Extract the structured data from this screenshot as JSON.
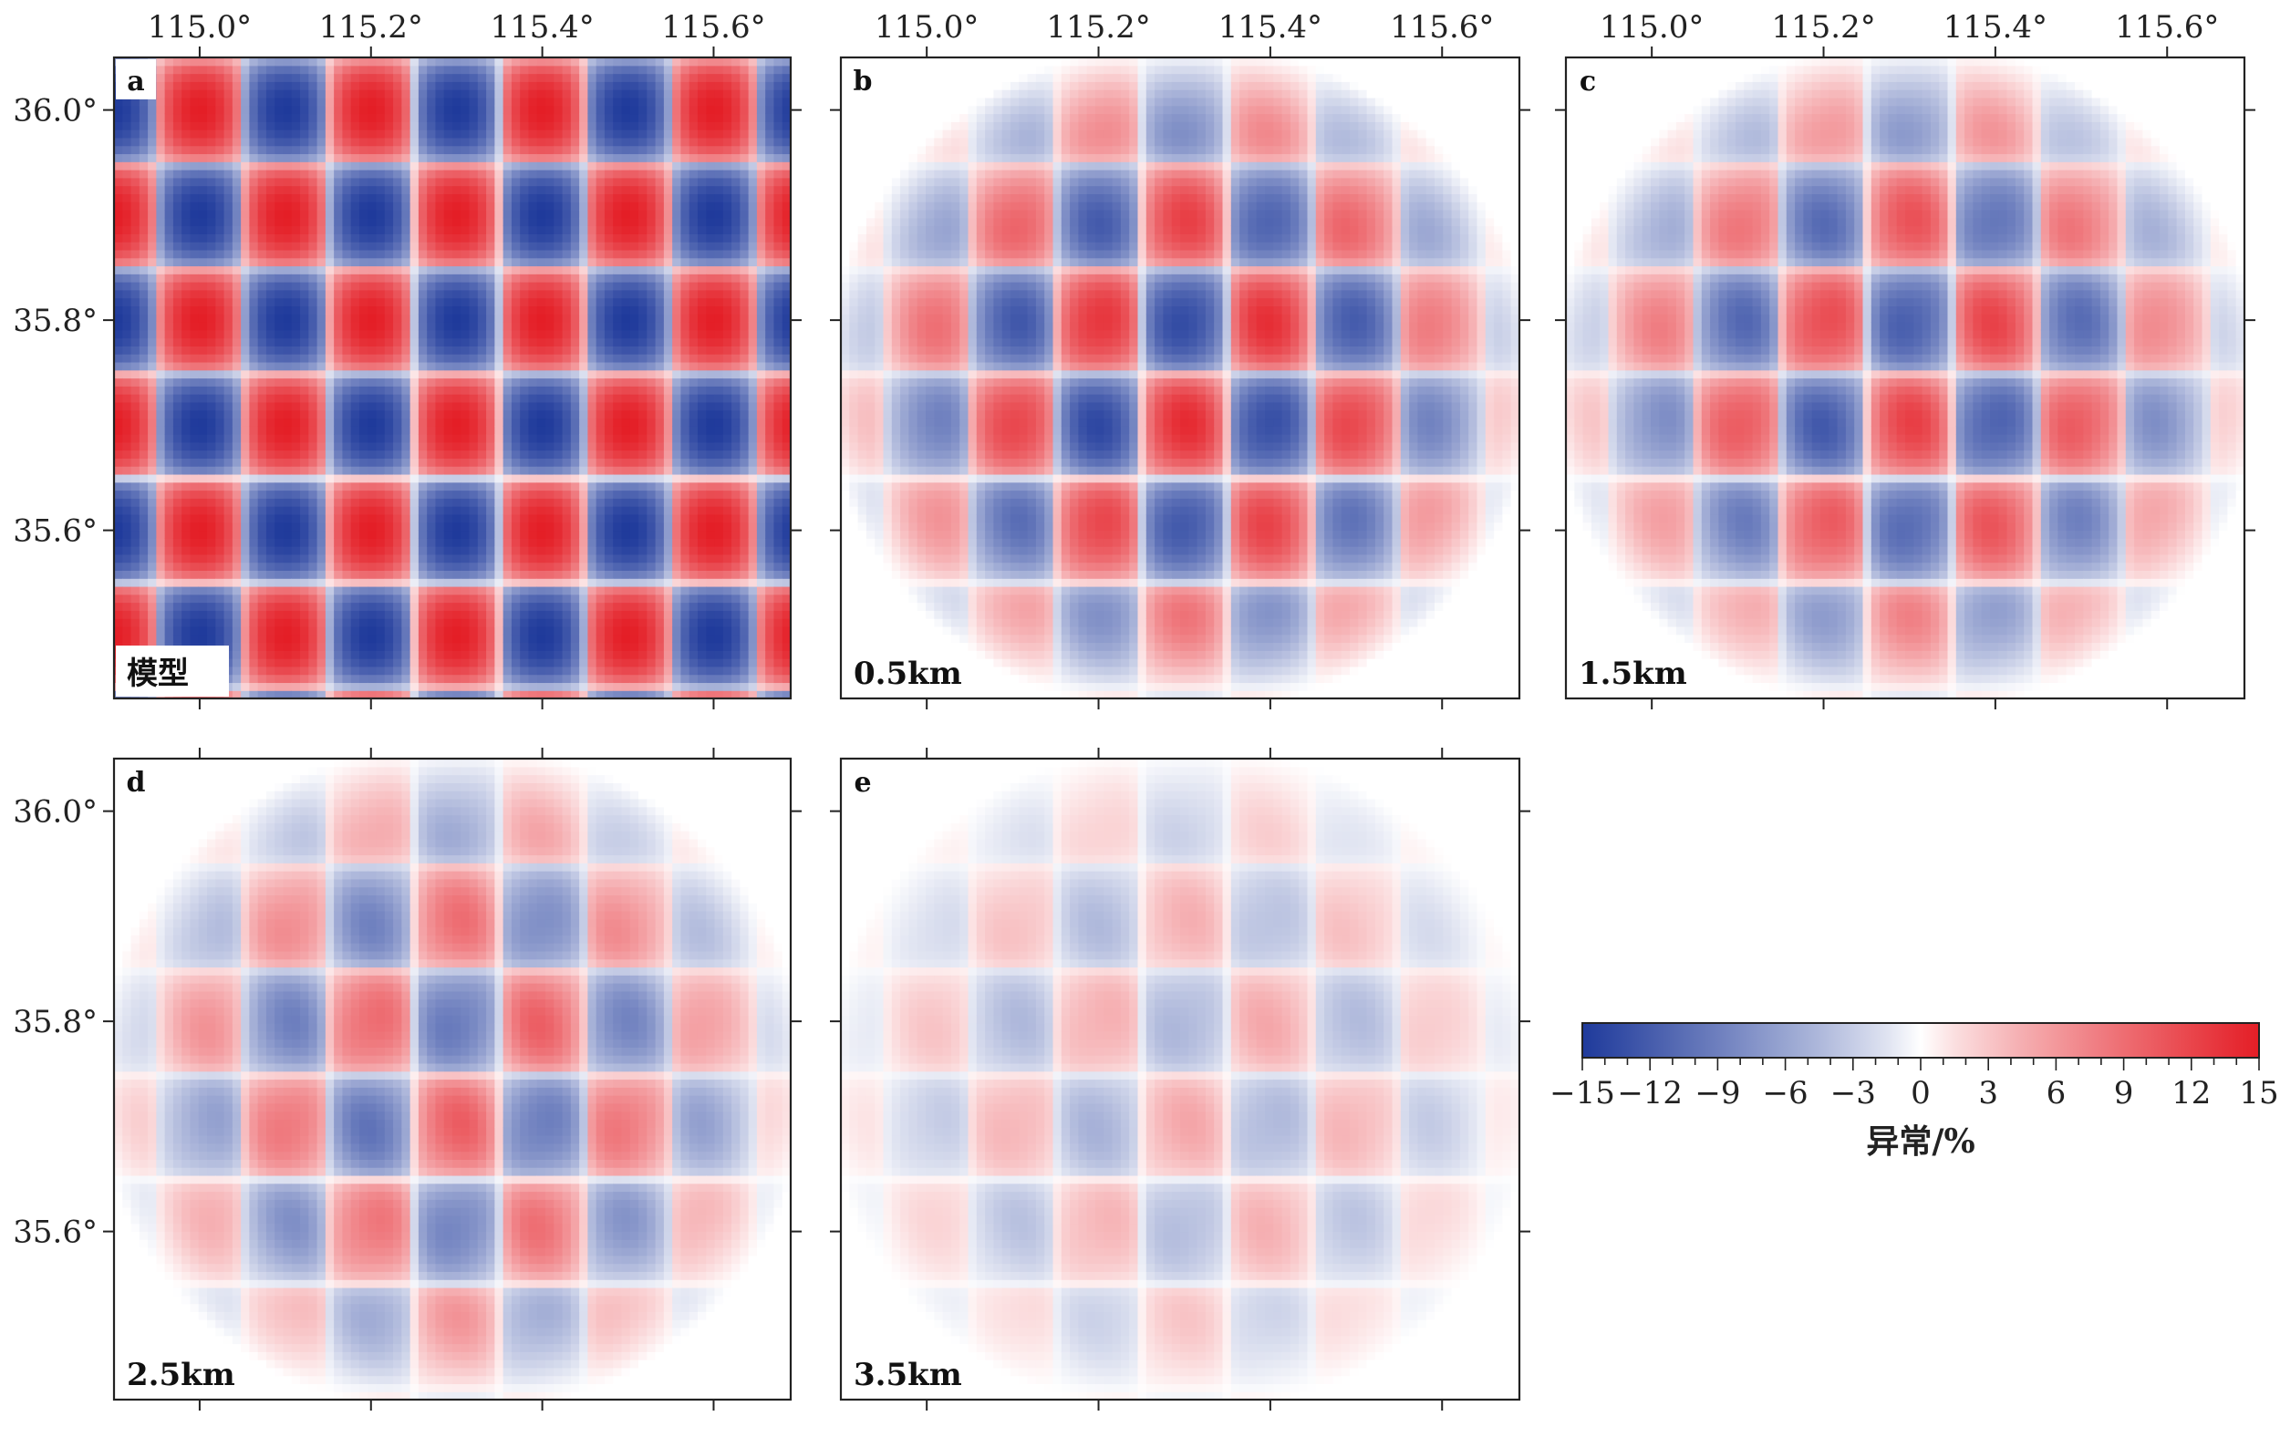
{
  "chart_data": {
    "type": "heatmap",
    "x_axis": {
      "tick_labels": [
        "115.0°",
        "115.2°",
        "115.4°",
        "115.6°"
      ],
      "tick_values": [
        115.0,
        115.2,
        115.4,
        115.6
      ],
      "range": [
        114.9,
        115.69
      ]
    },
    "y_axis": {
      "tick_labels": [
        "36.0°",
        "35.8°",
        "35.6°"
      ],
      "tick_values": [
        36.0,
        35.8,
        35.6
      ],
      "range": [
        35.44,
        36.05
      ]
    },
    "checker": {
      "cell_deg": 0.1,
      "amplitude_percent": 15,
      "description_colors": {
        "negative": "#1f3a9b",
        "zero": "#ffffff",
        "positive": "#e41e26"
      }
    },
    "panels": [
      {
        "letter": "a",
        "depth_label": "模型",
        "recovery": 1.0,
        "blur": 0.0,
        "position": "top-left"
      },
      {
        "letter": "b",
        "depth_label": "0.5km",
        "recovery": 0.95,
        "blur": 0.3,
        "position": "top-middle"
      },
      {
        "letter": "c",
        "depth_label": "1.5km",
        "recovery": 0.85,
        "blur": 0.45,
        "position": "top-right"
      },
      {
        "letter": "d",
        "depth_label": "2.5km",
        "recovery": 0.7,
        "blur": 0.6,
        "position": "bottom-left"
      },
      {
        "letter": "e",
        "depth_label": "3.5km",
        "recovery": 0.35,
        "blur": 0.8,
        "position": "bottom-middle"
      }
    ],
    "colorbar": {
      "min": -15,
      "max": 15,
      "tick_labels": [
        "−15",
        "−12",
        "−9",
        "−6",
        "−3",
        "0",
        "3",
        "6",
        "9",
        "12",
        "15"
      ],
      "tick_values": [
        -15,
        -12,
        -9,
        -6,
        -3,
        0,
        3,
        6,
        9,
        12,
        15
      ],
      "label": "异常/%"
    }
  }
}
